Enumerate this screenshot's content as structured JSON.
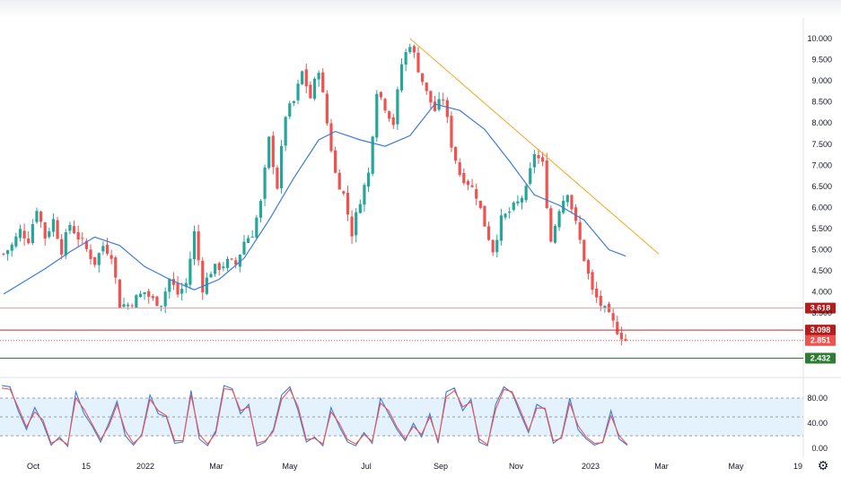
{
  "colors": {
    "up": "#26a69a",
    "down": "#ef5350",
    "wick_up": "#26a69a",
    "wick_down": "#ef5350",
    "moving_average": "#3d7bd9",
    "trendline": "#f5a623",
    "resistance_1": "#ef9a9a",
    "resistance_2": "#c62828",
    "support": "#2e7d32",
    "current_price": "#ef5350",
    "stoch_k": "#3d7bd9",
    "stoch_d": "#ef5350",
    "stoch_band": "#e3f2fd"
  },
  "icons": {
    "settings": "gear-icon"
  },
  "chart_data": [
    {
      "type": "candlestick",
      "title": "",
      "xlabel": "",
      "ylabel": "",
      "ylim": [
        2.2,
        10.1
      ],
      "y_ticks": [
        "10.000",
        "9.500",
        "9.000",
        "8.500",
        "8.000",
        "7.500",
        "7.000",
        "6.500",
        "6.000",
        "5.500",
        "5.000",
        "4.500",
        "4.000",
        "3.500"
      ],
      "x_ticks": [
        "Oct",
        "15",
        "2022",
        "Mar",
        "May",
        "Jul",
        "Sep",
        "Nov",
        "2023",
        "Mar",
        "May",
        "19"
      ],
      "price_levels": [
        {
          "label": "3.618",
          "value": 3.618,
          "kind": "resistance"
        },
        {
          "label": "3.098",
          "value": 3.098,
          "kind": "resistance"
        },
        {
          "label": "2.851",
          "value": 2.851,
          "kind": "current-price"
        },
        {
          "label": "2.432",
          "value": 2.432,
          "kind": "support"
        }
      ],
      "close_path": [
        [
          0,
          4.9
        ],
        [
          2,
          5.1
        ],
        [
          4,
          5.45
        ],
        [
          6,
          5.25
        ],
        [
          8,
          6.0
        ],
        [
          10,
          5.3
        ],
        [
          12,
          5.7
        ],
        [
          14,
          5.0
        ],
        [
          16,
          5.6
        ],
        [
          18,
          5.3
        ],
        [
          20,
          5.0
        ],
        [
          22,
          4.7
        ],
        [
          24,
          5.1
        ],
        [
          26,
          4.9
        ],
        [
          28,
          3.7
        ],
        [
          30,
          3.7
        ],
        [
          32,
          3.85
        ],
        [
          34,
          4.0
        ],
        [
          36,
          3.8
        ],
        [
          38,
          3.75
        ],
        [
          40,
          4.3
        ],
        [
          42,
          3.95
        ],
        [
          44,
          4.2
        ],
        [
          46,
          5.4
        ],
        [
          48,
          4.1
        ],
        [
          50,
          4.5
        ],
        [
          52,
          4.6
        ],
        [
          54,
          4.7
        ],
        [
          56,
          4.65
        ],
        [
          58,
          5.2
        ],
        [
          60,
          5.4
        ],
        [
          62,
          6.1
        ],
        [
          64,
          7.6
        ],
        [
          66,
          6.5
        ],
        [
          68,
          8.2
        ],
        [
          70,
          8.5
        ],
        [
          72,
          9.2
        ],
        [
          74,
          8.6
        ],
        [
          76,
          9.3
        ],
        [
          78,
          8.0
        ],
        [
          80,
          6.8
        ],
        [
          82,
          6.3
        ],
        [
          84,
          5.4
        ],
        [
          86,
          6.2
        ],
        [
          88,
          6.8
        ],
        [
          90,
          8.8
        ],
        [
          92,
          8.4
        ],
        [
          94,
          8.0
        ],
        [
          96,
          9.4
        ],
        [
          98,
          9.9
        ],
        [
          100,
          9.3
        ],
        [
          102,
          8.7
        ],
        [
          104,
          8.3
        ],
        [
          106,
          8.6
        ],
        [
          108,
          7.5
        ],
        [
          110,
          6.8
        ],
        [
          112,
          6.6
        ],
        [
          114,
          6.3
        ],
        [
          116,
          5.6
        ],
        [
          118,
          5.0
        ],
        [
          120,
          5.7
        ],
        [
          122,
          5.9
        ],
        [
          124,
          6.1
        ],
        [
          126,
          6.4
        ],
        [
          128,
          7.3
        ],
        [
          130,
          7.0
        ],
        [
          132,
          5.2
        ],
        [
          134,
          6.0
        ],
        [
          136,
          6.4
        ],
        [
          138,
          5.6
        ],
        [
          140,
          4.8
        ],
        [
          142,
          4.0
        ],
        [
          144,
          3.7
        ],
        [
          146,
          3.4
        ],
        [
          148,
          3.1
        ],
        [
          150,
          2.85
        ]
      ],
      "moving_average": [
        [
          0,
          3.95
        ],
        [
          10,
          4.55
        ],
        [
          16,
          4.95
        ],
        [
          22,
          5.3
        ],
        [
          28,
          5.1
        ],
        [
          34,
          4.6
        ],
        [
          40,
          4.3
        ],
        [
          46,
          4.05
        ],
        [
          52,
          4.3
        ],
        [
          58,
          4.8
        ],
        [
          64,
          5.7
        ],
        [
          70,
          6.7
        ],
        [
          76,
          7.6
        ],
        [
          80,
          7.8
        ],
        [
          86,
          7.6
        ],
        [
          92,
          7.45
        ],
        [
          98,
          7.7
        ],
        [
          104,
          8.45
        ],
        [
          110,
          8.3
        ],
        [
          116,
          7.85
        ],
        [
          122,
          7.1
        ],
        [
          128,
          6.3
        ],
        [
          134,
          6.05
        ],
        [
          140,
          5.7
        ],
        [
          146,
          5.0
        ],
        [
          150,
          4.85
        ]
      ],
      "trendline": {
        "from": [
          98,
          10.0
        ],
        "to": [
          158,
          4.9
        ]
      }
    },
    {
      "type": "line",
      "title": "",
      "ylim": [
        0,
        100
      ],
      "y_ticks": [
        "80.00",
        "40.00",
        "0.00"
      ],
      "band": [
        20,
        80
      ],
      "midline": 50,
      "series": [
        {
          "values": [
            100,
            98,
            60,
            30,
            65,
            40,
            5,
            18,
            3,
            90,
            55,
            35,
            10,
            40,
            75,
            20,
            5,
            22,
            85,
            55,
            50,
            8,
            10,
            92,
            15,
            4,
            28,
            100,
            95,
            55,
            70,
            4,
            10,
            30,
            85,
            98,
            60,
            10,
            18,
            4,
            65,
            35,
            10,
            4,
            25,
            8,
            80,
            55,
            30,
            12,
            40,
            18,
            55,
            8,
            90,
            96,
            60,
            78,
            10,
            4,
            70,
            98,
            88,
            55,
            25,
            70,
            62,
            8,
            18,
            80,
            30,
            15,
            5,
            10,
            60,
            15,
            5
          ]
        },
        {
          "values": [
            96,
            94,
            65,
            34,
            58,
            45,
            8,
            15,
            6,
            80,
            62,
            38,
            14,
            35,
            70,
            28,
            8,
            20,
            78,
            60,
            52,
            12,
            12,
            85,
            22,
            7,
            24,
            95,
            93,
            60,
            66,
            8,
            12,
            27,
            78,
            94,
            66,
            14,
            16,
            7,
            58,
            40,
            14,
            7,
            22,
            11,
            72,
            60,
            34,
            15,
            35,
            22,
            50,
            12,
            82,
            92,
            66,
            74,
            15,
            6,
            62,
            94,
            90,
            60,
            28,
            64,
            64,
            12,
            16,
            72,
            36,
            18,
            8,
            9,
            52,
            20,
            6
          ]
        }
      ]
    }
  ]
}
